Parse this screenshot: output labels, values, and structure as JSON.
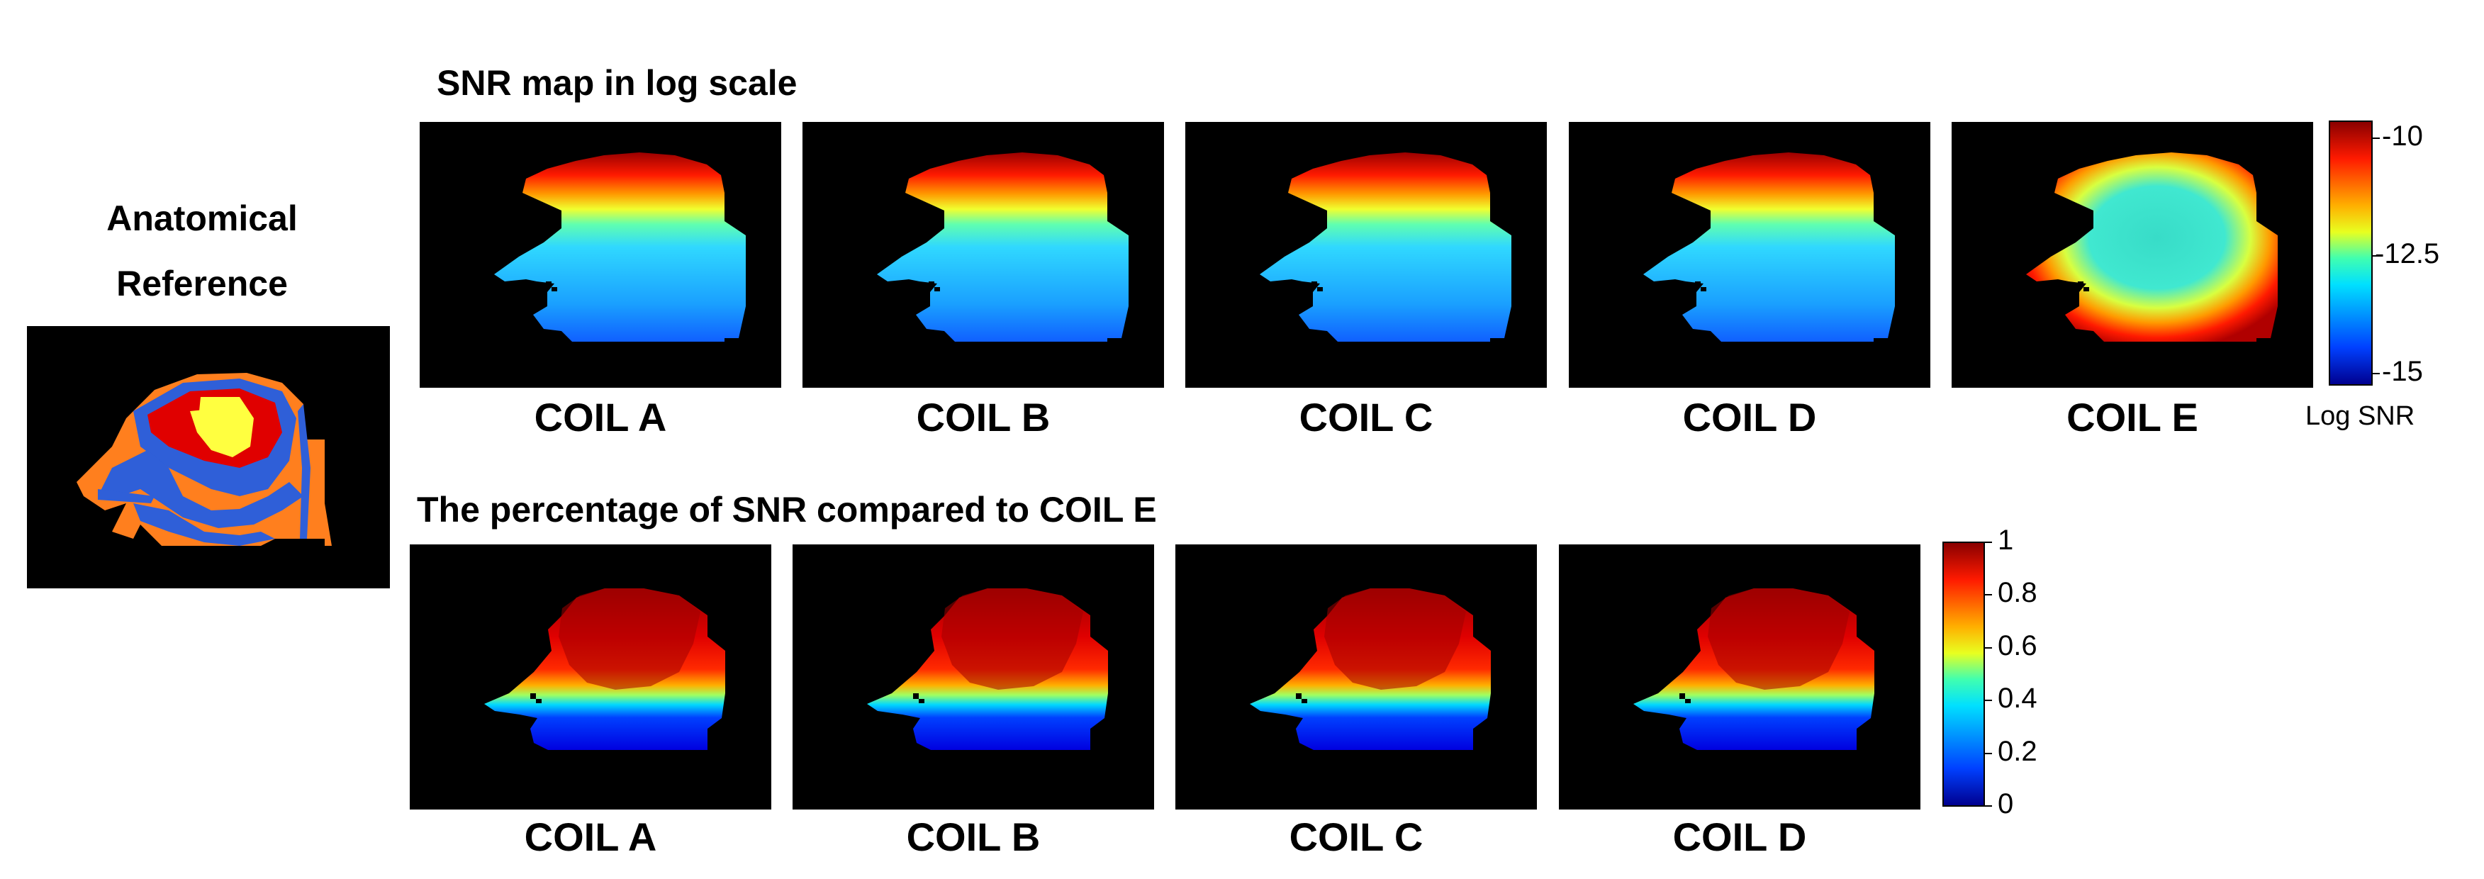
{
  "anatomical": {
    "title_line1": "Anatomical",
    "title_line2": "Reference"
  },
  "snr_section": {
    "title": "SNR map in log scale",
    "panels": [
      {
        "label": "COIL A"
      },
      {
        "label": "COIL B"
      },
      {
        "label": "COIL C"
      },
      {
        "label": "COIL D"
      },
      {
        "label": "COIL E"
      }
    ],
    "colorbar": {
      "ticks": [
        "-10",
        "-12.5",
        "-15"
      ],
      "label": "Log SNR",
      "colormap": "jet"
    }
  },
  "pct_section": {
    "title": "The percentage of SNR compared to COIL E",
    "panels": [
      {
        "label": "COIL A"
      },
      {
        "label": "COIL B"
      },
      {
        "label": "COIL C"
      },
      {
        "label": "COIL D"
      }
    ],
    "colorbar": {
      "ticks": [
        "1",
        "0.8",
        "0.6",
        "0.4",
        "0.2",
        "0"
      ],
      "colormap": "jet"
    }
  },
  "colors": {
    "jet_dark_red": "#800000",
    "jet_red": "#ff2a00",
    "jet_orange": "#ff9a00",
    "jet_yellow": "#ffe800",
    "jet_cyan": "#30d8ff",
    "jet_blue": "#1060ff",
    "jet_dark_blue": "#00008f",
    "anat_orange": "#ff7f1e",
    "anat_blue": "#2f5fd8",
    "anat_red": "#e00000",
    "anat_yellow": "#ffff40"
  }
}
